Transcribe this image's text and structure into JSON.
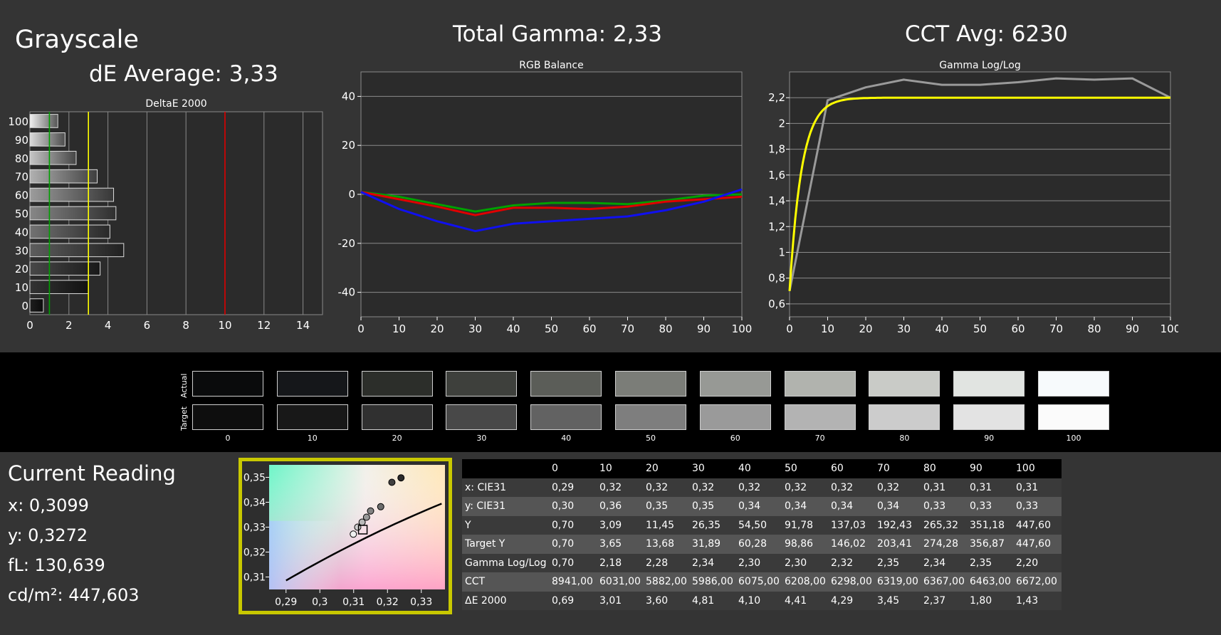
{
  "header": {
    "section_title": "Grayscale",
    "de_average": "dE Average: 3,33",
    "total_gamma": "Total Gamma: 2,33",
    "cct_avg": "CCT Avg: 6230"
  },
  "colors": {
    "panel_bg": "#343434",
    "plot_bg": "#2b2b2b",
    "grid": "#8a8a8a",
    "red": "#e00000",
    "green": "#00a000",
    "blue": "#1010f0",
    "yellow": "#ffff00",
    "gray_line": "#9a9a9a",
    "highlight_border": "#c8c800"
  },
  "chart_data": [
    {
      "type": "bar",
      "title": "DeltaE 2000",
      "orientation": "horizontal",
      "categories": [
        "0",
        "10",
        "20",
        "30",
        "40",
        "50",
        "60",
        "70",
        "80",
        "90",
        "100"
      ],
      "values": [
        0.69,
        3.01,
        3.6,
        4.81,
        4.1,
        4.41,
        4.29,
        3.45,
        2.37,
        1.8,
        1.43
      ],
      "xlim": [
        0,
        15
      ],
      "xticks": [
        "0",
        "2",
        "4",
        "6",
        "8",
        "10",
        "12",
        "14"
      ],
      "reference_lines": [
        {
          "value": 1,
          "color": "#00a000"
        },
        {
          "value": 3,
          "color": "#ffff00"
        },
        {
          "value": 10,
          "color": "#e00000"
        }
      ]
    },
    {
      "type": "line",
      "title": "RGB Balance",
      "x": [
        0,
        10,
        20,
        30,
        40,
        50,
        60,
        70,
        80,
        90,
        100
      ],
      "xlim": [
        0,
        100
      ],
      "ylim": [
        -50,
        50
      ],
      "xticks": [
        "0",
        "10",
        "20",
        "30",
        "40",
        "50",
        "60",
        "70",
        "80",
        "90",
        "100"
      ],
      "yticks": [
        "40",
        "20",
        "0",
        "-20",
        "-40"
      ],
      "series": [
        {
          "color": "#00a000",
          "values": [
            1,
            -1,
            -4,
            -7,
            -4.5,
            -3.5,
            -3.5,
            -4,
            -2.5,
            -0.5,
            0
          ]
        },
        {
          "color": "#e00000",
          "values": [
            1,
            -2,
            -5,
            -8.5,
            -5.5,
            -5.5,
            -6,
            -5,
            -3,
            -2,
            -1
          ]
        },
        {
          "color": "#1010f0",
          "values": [
            1,
            -6,
            -11,
            -15,
            -12,
            -11,
            -10,
            -9,
            -6.5,
            -3,
            2
          ]
        }
      ]
    },
    {
      "type": "line",
      "title": "Gamma Log/Log",
      "x": [
        0,
        10,
        20,
        30,
        40,
        50,
        60,
        70,
        80,
        90,
        100
      ],
      "xlim": [
        0,
        100
      ],
      "ylim": [
        0.5,
        2.4
      ],
      "xticks": [
        "0",
        "10",
        "20",
        "30",
        "40",
        "50",
        "60",
        "70",
        "80",
        "90",
        "100"
      ],
      "yticks": [
        "2,2",
        "2",
        "1,8",
        "1,6",
        "1,4",
        "1,2",
        "1",
        "0,8",
        "0,6"
      ],
      "series": [
        {
          "color": "#9a9a9a",
          "values": [
            0.7,
            2.18,
            2.28,
            2.34,
            2.3,
            2.3,
            2.32,
            2.35,
            2.34,
            2.35,
            2.2
          ]
        },
        {
          "color": "#ffff00",
          "values": [
            0.7,
            2.12,
            2.17,
            2.19,
            2.2,
            2.2,
            2.2,
            2.2,
            2.2,
            2.2,
            2.2
          ]
        }
      ]
    },
    {
      "type": "scatter",
      "xlim": [
        0.285,
        0.337
      ],
      "ylim": [
        0.305,
        0.355
      ],
      "xticks": [
        "0,29",
        "0,3",
        "0,31",
        "0,32",
        "0,33"
      ],
      "yticks": [
        "0,35",
        "0,34",
        "0,33",
        "0,32",
        "0,31"
      ],
      "points": [
        {
          "x": 0.3099,
          "y": 0.3272,
          "marker": "circle",
          "shade": 1.0
        },
        {
          "x": 0.3112,
          "y": 0.33,
          "marker": "circle",
          "shade": 0.85
        },
        {
          "x": 0.3125,
          "y": 0.332,
          "marker": "circle",
          "shade": 0.75
        },
        {
          "x": 0.3138,
          "y": 0.334,
          "marker": "circle",
          "shade": 0.6
        },
        {
          "x": 0.315,
          "y": 0.3365,
          "marker": "circle",
          "shade": 0.5
        },
        {
          "x": 0.318,
          "y": 0.3382,
          "marker": "circle",
          "shade": 0.4
        },
        {
          "x": 0.3213,
          "y": 0.348,
          "marker": "circle",
          "shade": 0.2
        },
        {
          "x": 0.324,
          "y": 0.3498,
          "marker": "circle",
          "shade": 0.1
        }
      ],
      "target": {
        "x": 0.3127,
        "y": 0.329
      }
    }
  ],
  "swatches": {
    "row_labels": [
      "Actual",
      "Target"
    ],
    "levels": [
      "0",
      "10",
      "20",
      "30",
      "40",
      "50",
      "60",
      "70",
      "80",
      "90",
      "100"
    ],
    "actual_colors": [
      "#0a0b0c",
      "#15171a",
      "#2c2e2a",
      "#3e403c",
      "#5b5d58",
      "#7b7d78",
      "#979995",
      "#b1b3ae",
      "#c9cbc7",
      "#e1e4e1",
      "#f7fafc"
    ],
    "target_colors": [
      "#0e0e0e",
      "#181818",
      "#303030",
      "#484848",
      "#626262",
      "#7e7e7e",
      "#9a9a9a",
      "#b3b3b3",
      "#cccccc",
      "#e3e3e3",
      "#fbfbfb"
    ]
  },
  "current_reading": {
    "title": "Current Reading",
    "x": "x: 0,3099",
    "y": "y: 0,3272",
    "fl": "fL: 130,639",
    "cdm2": "cd/m²: 447,603"
  },
  "table": {
    "columns": [
      "0",
      "10",
      "20",
      "30",
      "40",
      "50",
      "60",
      "70",
      "80",
      "90",
      "100"
    ],
    "rows": [
      {
        "label": "x: CIE31",
        "values": [
          "0,29",
          "0,32",
          "0,32",
          "0,32",
          "0,32",
          "0,32",
          "0,32",
          "0,32",
          "0,31",
          "0,31",
          "0,31"
        ]
      },
      {
        "label": "y: CIE31",
        "values": [
          "0,30",
          "0,36",
          "0,35",
          "0,35",
          "0,34",
          "0,34",
          "0,34",
          "0,34",
          "0,33",
          "0,33",
          "0,33"
        ]
      },
      {
        "label": "Y",
        "values": [
          "0,70",
          "3,09",
          "11,45",
          "26,35",
          "54,50",
          "91,78",
          "137,03",
          "192,43",
          "265,32",
          "351,18",
          "447,60"
        ]
      },
      {
        "label": "Target Y",
        "values": [
          "0,70",
          "3,65",
          "13,68",
          "31,89",
          "60,28",
          "98,86",
          "146,02",
          "203,41",
          "274,28",
          "356,87",
          "447,60"
        ]
      },
      {
        "label": "Gamma Log/Log",
        "values": [
          "0,70",
          "2,18",
          "2,28",
          "2,34",
          "2,30",
          "2,30",
          "2,32",
          "2,35",
          "2,34",
          "2,35",
          "2,20"
        ]
      },
      {
        "label": "CCT",
        "values": [
          "8941,00",
          "6031,00",
          "5882,00",
          "5986,00",
          "6075,00",
          "6208,00",
          "6298,00",
          "6319,00",
          "6367,00",
          "6463,00",
          "6672,00"
        ]
      },
      {
        "label": "ΔE 2000",
        "values": [
          "0,69",
          "3,01",
          "3,60",
          "4,81",
          "4,10",
          "4,41",
          "4,29",
          "3,45",
          "2,37",
          "1,80",
          "1,43"
        ]
      }
    ]
  }
}
